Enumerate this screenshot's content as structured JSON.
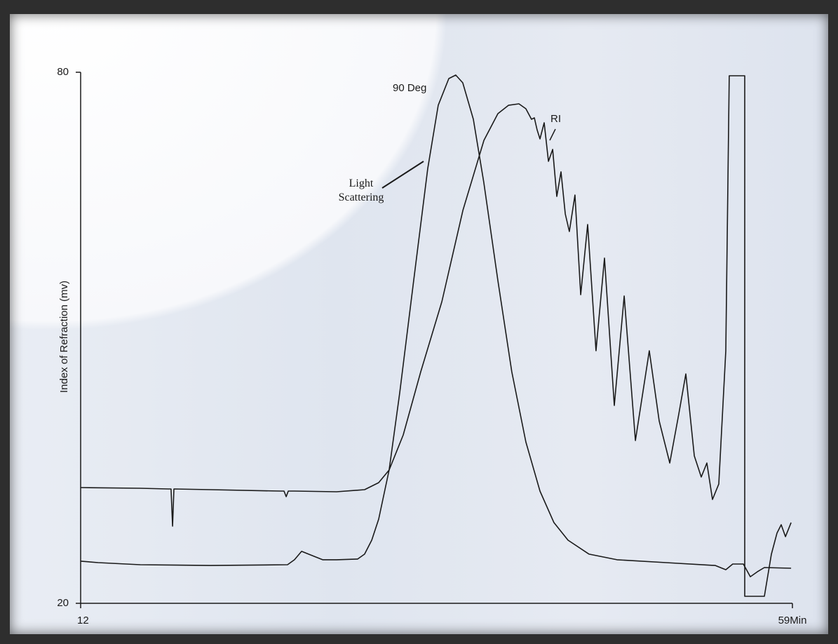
{
  "chart_data": {
    "type": "line",
    "y_label": "Index of Refraction (mv)",
    "xlim": [
      12,
      59
    ],
    "xticks": [
      12,
      {
        "value": 59,
        "label": "59Min"
      }
    ],
    "ylim": [
      20,
      80
    ],
    "yticks": [
      20,
      80
    ],
    "annotations": [
      "Light Scattering"
    ],
    "series": [
      {
        "name": "90 Deg",
        "color": "#1a1a1a",
        "x": [
          12.0,
          13.16,
          14.08,
          15.94,
          20.57,
          25.66,
          26.12,
          26.59,
          27.05,
          27.98,
          28.9,
          30.29,
          30.75,
          31.22,
          31.68,
          32.37,
          33.07,
          33.99,
          34.92,
          35.61,
          36.31,
          36.77,
          37.23,
          37.93,
          38.62,
          39.55,
          40.47,
          41.4,
          42.33,
          43.25,
          44.18,
          45.57,
          47.42,
          50.66,
          53.91,
          54.6,
          55.06,
          55.76,
          56.22,
          56.68,
          57.15,
          58.91
        ],
        "values": [
          24.76,
          24.6,
          24.52,
          24.36,
          24.27,
          24.36,
          24.92,
          25.87,
          25.56,
          24.92,
          24.92,
          25.0,
          25.56,
          27.13,
          29.51,
          35.06,
          43.78,
          56.46,
          69.14,
          76.27,
          79.29,
          79.68,
          78.81,
          74.69,
          67.56,
          56.46,
          46.16,
          38.23,
          32.68,
          29.12,
          27.13,
          25.56,
          24.92,
          24.6,
          24.27,
          23.8,
          24.44,
          24.44,
          23.0,
          23.56,
          24.04,
          23.96
        ]
      },
      {
        "name": "RI",
        "color": "#1a1a1a",
        "x": [
          12.0,
          15.94,
          17.79,
          17.97,
          18.07,
          18.16,
          20.57,
          25.2,
          25.43,
          25.57,
          25.71,
          26.12,
          28.9,
          30.75,
          31.68,
          32.37,
          33.3,
          34.46,
          35.85,
          37.24,
          38.63,
          39.55,
          40.25,
          40.94,
          41.4,
          41.77,
          41.96,
          42.14,
          42.33,
          42.61,
          42.89,
          43.17,
          43.44,
          43.72,
          44.0,
          44.27,
          44.64,
          45.02,
          45.48,
          46.03,
          46.59,
          47.24,
          47.89,
          48.63,
          49.55,
          50.2,
          50.9,
          51.5,
          51.96,
          52.52,
          52.98,
          53.35,
          53.72,
          54.14,
          54.6,
          54.83,
          55.85,
          55.85,
          57.15,
          57.61,
          57.98,
          58.26,
          58.54,
          58.91
        ],
        "values": [
          33.08,
          33.0,
          32.92,
          32.92,
          28.72,
          32.92,
          32.84,
          32.68,
          32.68,
          32.05,
          32.68,
          32.68,
          32.6,
          32.84,
          33.63,
          35.06,
          39.02,
          46.16,
          54.08,
          64.39,
          72.31,
          75.32,
          76.27,
          76.43,
          75.88,
          74.69,
          74.85,
          73.5,
          72.47,
          74.29,
          69.93,
          71.28,
          65.97,
          68.75,
          63.99,
          62.01,
          66.13,
          54.87,
          62.8,
          48.53,
          59.0,
          42.35,
          54.72,
          38.39,
          48.53,
          40.61,
          35.85,
          41.4,
          45.92,
          36.65,
          34.27,
          35.85,
          31.73,
          33.48,
          48.53,
          79.6,
          79.6,
          20.79,
          20.79,
          25.55,
          27.93,
          28.88,
          27.53,
          29.12
        ]
      }
    ]
  }
}
